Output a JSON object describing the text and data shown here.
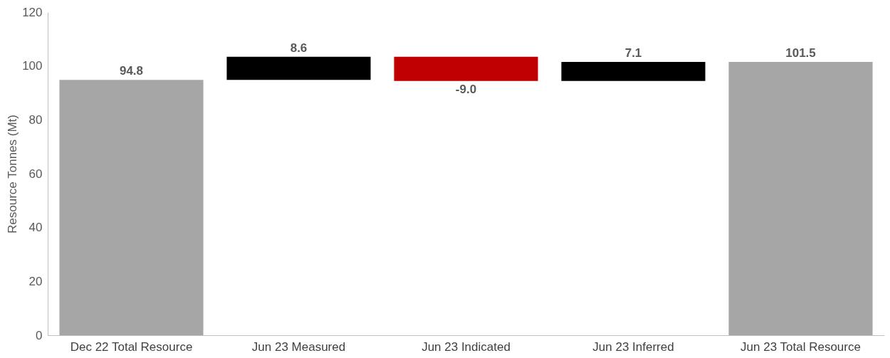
{
  "chart_data": {
    "type": "bar",
    "ylabel": "Resource Tonnes (Mt)",
    "categories": [
      "Dec 22 Total Resource",
      "Jun 23 Measured",
      "Jun 23 Indicated",
      "Jun 23 Inferred",
      "Jun 23 Total Resource"
    ],
    "values": [
      94.8,
      8.6,
      -9.0,
      7.1,
      101.5
    ],
    "base": [
      0,
      94.8,
      103.4,
      94.4,
      0
    ],
    "colors": [
      "#a6a6a6",
      "#000000",
      "#c00000",
      "#000000",
      "#a6a6a6"
    ],
    "value_labels": [
      "94.8",
      "8.6",
      "-9.0",
      "7.1",
      "101.5"
    ],
    "ylim": [
      0,
      120
    ],
    "yticks": [
      0,
      20,
      40,
      60,
      80,
      100,
      120
    ],
    "grid": false
  }
}
